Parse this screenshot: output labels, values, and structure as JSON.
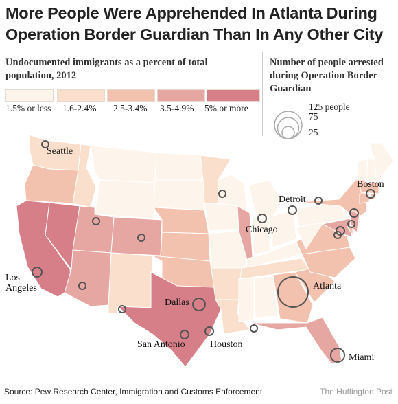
{
  "title": "More People Were Apprehended In Atlanta During Operation Border Guardian Than In Any Other City",
  "legend_color": {
    "title": "Undocumented immigrants as a percent of total population, 2012",
    "items": [
      {
        "label": "1.5% or less",
        "color": "#fdf5ec"
      },
      {
        "label": "1.6-2.4%",
        "color": "#f9dfcc"
      },
      {
        "label": "2.5-3.4%",
        "color": "#f3c2ae"
      },
      {
        "label": "3.5-4.9%",
        "color": "#e6a6a2"
      },
      {
        "label": "5% or more",
        "color": "#d67f88"
      }
    ]
  },
  "legend_size": {
    "title": "Number of people arrested during Operation Border Guardian",
    "items": [
      {
        "label": "125 people",
        "value": 125
      },
      {
        "label": "75",
        "value": 75
      },
      {
        "label": "25",
        "value": 25
      }
    ]
  },
  "cities": [
    {
      "name": "Seattle",
      "label": "Seattle"
    },
    {
      "name": "Boston",
      "label": "Boston"
    },
    {
      "name": "Detroit",
      "label": "Detroit"
    },
    {
      "name": "Chicago",
      "label": "Chicago"
    },
    {
      "name": "Los Angeles",
      "label": "Los\nAngeles"
    },
    {
      "name": "Atlanta",
      "label": "Atlanta"
    },
    {
      "name": "Dallas",
      "label": "Dallas"
    },
    {
      "name": "San Antonio",
      "label": "San Antonio"
    },
    {
      "name": "Houston",
      "label": "Houston"
    },
    {
      "name": "Miami",
      "label": "Miami"
    }
  ],
  "source": "Source: Pew Research Center, Immigration and Customs Enforcement",
  "credit": "The Huffington Post"
}
